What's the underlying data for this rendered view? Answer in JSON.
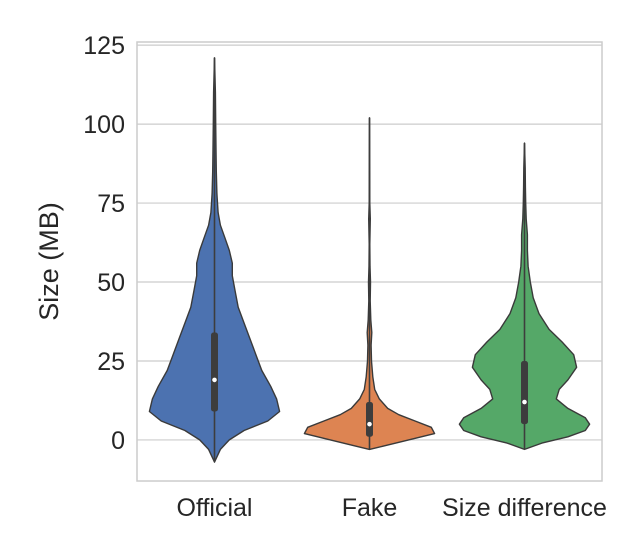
{
  "chart_data": {
    "type": "violin",
    "ylabel": "Size (MB)",
    "xlabel": "",
    "title": "",
    "categories": [
      "Official",
      "Fake",
      "Size difference"
    ],
    "ylim": [
      -13,
      126
    ],
    "yticks": [
      0,
      25,
      50,
      75,
      100,
      125
    ],
    "grid": true,
    "colors": {
      "Official": "#4c72b0",
      "Fake": "#dd8452",
      "Size difference": "#55a868"
    },
    "series": [
      {
        "category": "Official",
        "min": -7,
        "q1": 9,
        "median": 19,
        "q3": 34,
        "max": 121,
        "density": [
          [
            -7,
            0
          ],
          [
            -3,
            0.02
          ],
          [
            0,
            0.05
          ],
          [
            3,
            0.1
          ],
          [
            6,
            0.18
          ],
          [
            9,
            0.22
          ],
          [
            13,
            0.21
          ],
          [
            17,
            0.19
          ],
          [
            22,
            0.16
          ],
          [
            27,
            0.14
          ],
          [
            32,
            0.12
          ],
          [
            37,
            0.1
          ],
          [
            42,
            0.08
          ],
          [
            47,
            0.07
          ],
          [
            52,
            0.06
          ],
          [
            56,
            0.06
          ],
          [
            60,
            0.05
          ],
          [
            64,
            0.035
          ],
          [
            68,
            0.02
          ],
          [
            72,
            0.012
          ],
          [
            78,
            0.008
          ],
          [
            85,
            0.006
          ],
          [
            92,
            0.005
          ],
          [
            100,
            0.004
          ],
          [
            110,
            0.003
          ],
          [
            121,
            0
          ]
        ]
      },
      {
        "category": "Fake",
        "min": -3,
        "q1": 1,
        "median": 5,
        "q3": 12,
        "max": 102,
        "density": [
          [
            -3,
            0
          ],
          [
            -2,
            0.2
          ],
          [
            0,
            0.6
          ],
          [
            2,
            1.0
          ],
          [
            4,
            0.95
          ],
          [
            6,
            0.7
          ],
          [
            8,
            0.45
          ],
          [
            10,
            0.28
          ],
          [
            13,
            0.15
          ],
          [
            16,
            0.08
          ],
          [
            20,
            0.05
          ],
          [
            25,
            0.03
          ],
          [
            30,
            0.025
          ],
          [
            34,
            0.035
          ],
          [
            38,
            0.02
          ],
          [
            44,
            0.01
          ],
          [
            50,
            0.015
          ],
          [
            55,
            0.008
          ],
          [
            62,
            0.005
          ],
          [
            70,
            0.012
          ],
          [
            75,
            0.004
          ],
          [
            85,
            0.003
          ],
          [
            95,
            0.002
          ],
          [
            102,
            0
          ]
        ]
      },
      {
        "category": "Size difference",
        "min": -3,
        "q1": 5,
        "median": 12,
        "q3": 25,
        "max": 94,
        "density": [
          [
            -3,
            0
          ],
          [
            -1,
            0.12
          ],
          [
            1,
            0.3
          ],
          [
            3,
            0.42
          ],
          [
            5,
            0.45
          ],
          [
            7,
            0.42
          ],
          [
            10,
            0.3
          ],
          [
            13,
            0.22
          ],
          [
            16,
            0.24
          ],
          [
            19,
            0.3
          ],
          [
            23,
            0.36
          ],
          [
            27,
            0.34
          ],
          [
            31,
            0.26
          ],
          [
            35,
            0.17
          ],
          [
            40,
            0.1
          ],
          [
            45,
            0.06
          ],
          [
            50,
            0.04
          ],
          [
            55,
            0.025
          ],
          [
            60,
            0.02
          ],
          [
            65,
            0.02
          ],
          [
            70,
            0.012
          ],
          [
            75,
            0.008
          ],
          [
            80,
            0.006
          ],
          [
            86,
            0.005
          ],
          [
            94,
            0
          ]
        ]
      }
    ]
  }
}
